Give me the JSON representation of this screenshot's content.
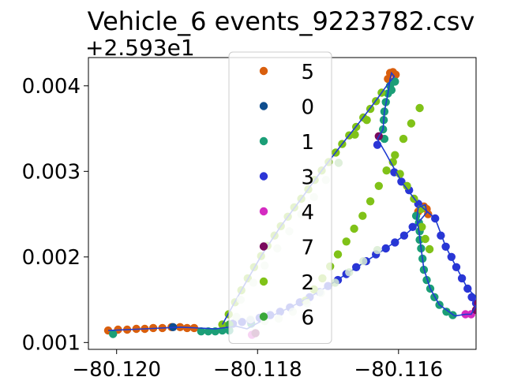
{
  "chart_data": {
    "type": "scatter",
    "title": "Vehicle_6 events_9223782.csv",
    "xlabel": "",
    "ylabel": "",
    "y_offset_label": "+2.593e1",
    "xlim": [
      -80.1204,
      -80.1149
    ],
    "ylim": [
      0.00092,
      0.00433
    ],
    "x_ticks": [
      {
        "value": -80.12,
        "label": "−80.120"
      },
      {
        "value": -80.118,
        "label": "−80.118"
      },
      {
        "value": -80.116,
        "label": "−80.116"
      }
    ],
    "y_ticks": [
      {
        "value": 0.001,
        "label": "0.001"
      },
      {
        "value": 0.002,
        "label": "0.002"
      },
      {
        "value": 0.003,
        "label": "0.003"
      },
      {
        "value": 0.004,
        "label": "0.004"
      }
    ],
    "grid": false,
    "legend": {
      "placement": "top-center"
    },
    "trajectory_color": "#1f3bd1",
    "series": [
      {
        "name": "5",
        "color": "#d95f0e",
        "points": [
          [
            -80.12012,
            0.00114
          ],
          [
            -80.11998,
            0.00115
          ],
          [
            -80.11985,
            0.00115
          ],
          [
            -80.11972,
            0.00116
          ],
          [
            -80.1196,
            0.00116
          ],
          [
            -80.11948,
            0.00117
          ],
          [
            -80.11935,
            0.00117
          ],
          [
            -80.11922,
            0.00118
          ],
          [
            -80.1191,
            0.00118
          ],
          [
            -80.119,
            0.00117
          ],
          [
            -80.1189,
            0.00117
          ],
          [
            -80.11615,
            0.00408
          ],
          [
            -80.11612,
            0.00415
          ],
          [
            -80.11608,
            0.00416
          ],
          [
            -80.11604,
            0.00413
          ],
          [
            -80.11572,
            0.00253
          ],
          [
            -80.11568,
            0.00258
          ],
          [
            -80.11564,
            0.00259
          ],
          [
            -80.1156,
            0.00256
          ],
          [
            -80.11558,
            0.0025
          ]
        ]
      },
      {
        "name": "0",
        "color": "#0e4d8e",
        "points": [
          [
            -80.1192,
            0.00118
          ],
          [
            -80.1184,
            0.0012
          ]
        ]
      },
      {
        "name": "1",
        "color": "#1b9e77",
        "points": [
          [
            -80.12005,
            0.0011
          ],
          [
            -80.1188,
            0.00113
          ],
          [
            -80.1187,
            0.00113
          ],
          [
            -80.1186,
            0.00113
          ],
          [
            -80.1185,
            0.00114
          ],
          [
            -80.1184,
            0.00114
          ],
          [
            -80.11809,
            0.00122
          ],
          [
            -80.11612,
            0.004
          ],
          [
            -80.11615,
            0.00391
          ],
          [
            -80.11618,
            0.00381
          ],
          [
            -80.1162,
            0.0037
          ],
          [
            -80.11621,
            0.0036
          ],
          [
            -80.11622,
            0.00349
          ],
          [
            -80.1161,
            0.00395
          ],
          [
            -80.11605,
            0.00405
          ],
          [
            -80.1162,
            0.00338
          ],
          [
            -80.11575,
            0.00248
          ],
          [
            -80.11571,
            0.0024
          ],
          [
            -80.1157,
            0.0023
          ],
          [
            -80.1157,
            0.0022
          ],
          [
            -80.11568,
            0.0021
          ],
          [
            -80.11566,
            0.00198
          ],
          [
            -80.11564,
            0.00185
          ],
          [
            -80.1156,
            0.00173
          ],
          [
            -80.11555,
            0.00163
          ],
          [
            -80.11549,
            0.00153
          ],
          [
            -80.11542,
            0.00144
          ],
          [
            -80.11532,
            0.00136
          ],
          [
            -80.11523,
            0.00132
          ]
        ]
      },
      {
        "name": "3",
        "color": "#2b35d6",
        "points": [
          [
            -80.11835,
            0.00122
          ],
          [
            -80.11822,
            0.00124
          ],
          [
            -80.1181,
            0.00126
          ],
          [
            -80.11797,
            0.00129
          ],
          [
            -80.11782,
            0.00132
          ],
          [
            -80.11768,
            0.00136
          ],
          [
            -80.11754,
            0.00141
          ],
          [
            -80.1174,
            0.00147
          ],
          [
            -80.11726,
            0.00153
          ],
          [
            -80.11712,
            0.00159
          ],
          [
            -80.117,
            0.00166
          ],
          [
            -80.11686,
            0.00173
          ],
          [
            -80.11674,
            0.0018
          ],
          [
            -80.1166,
            0.00188
          ],
          [
            -80.11646,
            0.00195
          ],
          [
            -80.11632,
            0.00203
          ],
          [
            -80.11618,
            0.0021
          ],
          [
            -80.11605,
            0.00217
          ],
          [
            -80.11592,
            0.00225
          ],
          [
            -80.1158,
            0.00235
          ],
          [
            -80.11548,
            0.00245
          ],
          [
            -80.1154,
            0.00225
          ],
          [
            -80.11533,
            0.00212
          ],
          [
            -80.11525,
            0.002
          ],
          [
            -80.11518,
            0.00188
          ],
          [
            -80.1151,
            0.00175
          ],
          [
            -80.11502,
            0.00163
          ],
          [
            -80.11496,
            0.00153
          ],
          [
            -80.1149,
            0.00146
          ],
          [
            -80.11596,
            0.00288
          ],
          [
            -80.11585,
            0.00278
          ],
          [
            -80.1163,
            0.00331
          ],
          [
            -80.11606,
            0.00299
          ],
          [
            -80.11572,
            0.00262
          ]
        ]
      },
      {
        "name": "4",
        "color": "#d42bc1",
        "points": [
          [
            -80.11808,
            0.00109
          ],
          [
            -80.11505,
            0.00133
          ],
          [
            -80.11497,
            0.00133
          ]
        ]
      },
      {
        "name": "7",
        "color": "#7a0a5c",
        "points": [
          [
            -80.11803,
            0.00111
          ],
          [
            -80.11628,
            0.00341
          ],
          [
            -80.1149,
            0.00138
          ],
          [
            -80.11487,
            0.00146
          ]
        ]
      },
      {
        "name": "2",
        "color": "#80c218",
        "points": [
          [
            -80.11732,
            0.00149
          ],
          [
            -80.1172,
            0.00162
          ],
          [
            -80.11708,
            0.00175
          ],
          [
            -80.11697,
            0.00189
          ],
          [
            -80.11686,
            0.00203
          ],
          [
            -80.11674,
            0.00218
          ],
          [
            -80.11663,
            0.00233
          ],
          [
            -80.11651,
            0.00248
          ],
          [
            -80.1164,
            0.00265
          ],
          [
            -80.11628,
            0.00283
          ],
          [
            -80.11617,
            0.00301
          ],
          [
            -80.11605,
            0.00319
          ],
          [
            -80.11593,
            0.00338
          ],
          [
            -80.11582,
            0.00356
          ],
          [
            -80.1157,
            0.00374
          ],
          [
            -80.11624,
            0.00392
          ],
          [
            -80.11632,
            0.00382
          ],
          [
            -80.1164,
            0.00373
          ],
          [
            -80.1165,
            0.00363
          ],
          [
            -80.1166,
            0.00352
          ],
          [
            -80.1167,
            0.00342
          ],
          [
            -80.1168,
            0.00332
          ],
          [
            -80.11689,
            0.00322
          ],
          [
            -80.11699,
            0.00311
          ],
          [
            -80.11709,
            0.00301
          ],
          [
            -80.11719,
            0.0029
          ],
          [
            -80.11728,
            0.00279
          ],
          [
            -80.11738,
            0.00268
          ],
          [
            -80.11748,
            0.00258
          ],
          [
            -80.11757,
            0.00247
          ],
          [
            -80.11767,
            0.00236
          ],
          [
            -80.11776,
            0.00225
          ],
          [
            -80.11786,
            0.00213
          ],
          [
            -80.11795,
            0.00201
          ],
          [
            -80.11805,
            0.00188
          ],
          [
            -80.11814,
            0.00175
          ],
          [
            -80.11823,
            0.00161
          ],
          [
            -80.11832,
            0.00147
          ],
          [
            -80.11841,
            0.00133
          ],
          [
            -80.1185,
            0.00121
          ],
          [
            -80.11645,
            0.0036
          ],
          [
            -80.11662,
            0.00343
          ],
          [
            -80.11608,
            0.00311
          ],
          [
            -80.11598,
            0.00297
          ],
          [
            -80.11588,
            0.00283
          ],
          [
            -80.11578,
            0.00268
          ],
          [
            -80.11568,
            0.00256
          ],
          [
            -80.11556,
            0.00209
          ],
          [
            -80.11562,
            0.00221
          ],
          [
            -80.11567,
            0.00235
          ]
        ]
      },
      {
        "name": "6",
        "color": "#3aa83a",
        "points": [
          [
            -80.1184,
            0.00121
          ]
        ]
      }
    ],
    "trajectory": [
      [
        -80.12012,
        0.00114
      ],
      [
        -80.1196,
        0.00116
      ],
      [
        -80.1191,
        0.00118
      ],
      [
        -80.1186,
        0.00116
      ],
      [
        -80.1183,
        0.00119
      ],
      [
        -80.11815,
        0.00116
      ],
      [
        -80.11797,
        0.00124
      ],
      [
        -80.1178,
        0.00131
      ],
      [
        -80.11754,
        0.00141
      ],
      [
        -80.11726,
        0.00153
      ],
      [
        -80.117,
        0.00166
      ],
      [
        -80.11674,
        0.0018
      ],
      [
        -80.11646,
        0.00195
      ],
      [
        -80.11618,
        0.0021
      ],
      [
        -80.11592,
        0.00225
      ],
      [
        -80.11575,
        0.00237
      ],
      [
        -80.1156,
        0.00252
      ],
      [
        -80.11562,
        0.00261
      ],
      [
        -80.11572,
        0.00258
      ],
      [
        -80.11574,
        0.00245
      ],
      [
        -80.11571,
        0.0023
      ],
      [
        -80.11568,
        0.0021
      ],
      [
        -80.11564,
        0.00186
      ],
      [
        -80.11555,
        0.00163
      ],
      [
        -80.11542,
        0.00144
      ],
      [
        -80.1152,
        0.00131
      ],
      [
        -80.11505,
        0.00133
      ],
      [
        -80.11497,
        0.00133
      ],
      [
        -80.11488,
        0.00146
      ],
      [
        -80.1149,
        0.00153
      ],
      [
        -80.11502,
        0.00163
      ],
      [
        -80.11518,
        0.00188
      ],
      [
        -80.11533,
        0.00212
      ],
      [
        -80.11548,
        0.00245
      ],
      [
        -80.11572,
        0.00262
      ],
      [
        -80.11596,
        0.00288
      ],
      [
        -80.11618,
        0.00321
      ],
      [
        -80.1163,
        0.00338
      ],
      [
        -80.11622,
        0.00349
      ],
      [
        -80.1162,
        0.0037
      ],
      [
        -80.11615,
        0.00391
      ],
      [
        -80.11612,
        0.00408
      ],
      [
        -80.1161,
        0.00415
      ],
      [
        -80.11606,
        0.00411
      ],
      [
        -80.11616,
        0.00401
      ],
      [
        -80.1163,
        0.00385
      ],
      [
        -80.11652,
        0.00361
      ],
      [
        -80.1168,
        0.00332
      ],
      [
        -80.11709,
        0.00301
      ],
      [
        -80.11738,
        0.00268
      ],
      [
        -80.11767,
        0.00236
      ],
      [
        -80.11795,
        0.00201
      ],
      [
        -80.11823,
        0.00161
      ],
      [
        -80.1185,
        0.00121
      ]
    ],
    "overlay_points": [
      [
        -80.1183,
        0.0013
      ],
      [
        -80.1181,
        0.00127
      ],
      [
        -80.1179,
        0.00125
      ],
      [
        -80.1177,
        0.00128
      ],
      [
        -80.1175,
        0.00136
      ],
      [
        -80.1173,
        0.00146
      ],
      [
        -80.1171,
        0.00158
      ],
      [
        -80.1169,
        0.0017
      ],
      [
        -80.1167,
        0.00182
      ],
      [
        -80.1165,
        0.00195
      ],
      [
        -80.1163,
        0.00208
      ],
      [
        -80.11824,
        0.0015
      ],
      [
        -80.11806,
        0.0017
      ],
      [
        -80.1179,
        0.0019
      ],
      [
        -80.11772,
        0.0021
      ],
      [
        -80.11755,
        0.0023
      ],
      [
        -80.11738,
        0.0025
      ],
      [
        -80.1172,
        0.0027
      ],
      [
        -80.11703,
        0.0029
      ],
      [
        -80.11685,
        0.0031
      ]
    ]
  },
  "colors": {
    "overlay": "#d9ecd3",
    "axis": "#000000"
  }
}
